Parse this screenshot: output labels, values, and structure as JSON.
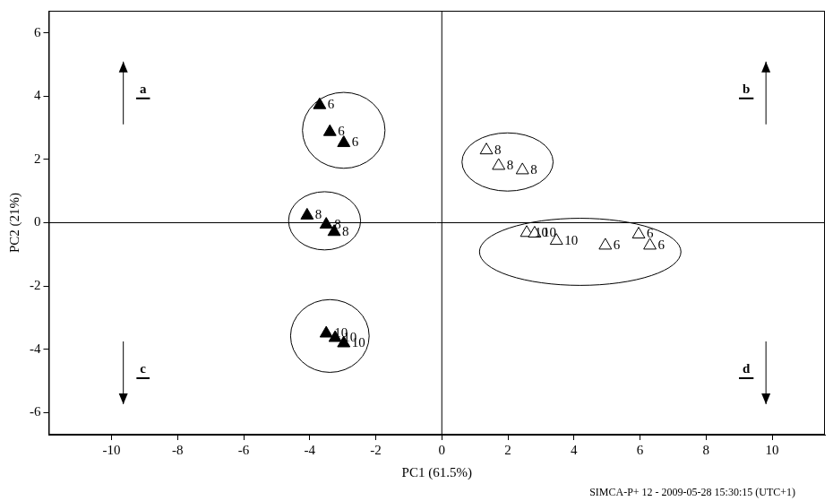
{
  "chart_data": {
    "type": "scatter",
    "x_label": "PC1 (61.5%)",
    "y_label": "PC2 (21%)",
    "footer": "SIMCA-P+ 12 - 2009-05-28 15:30:15 (UTC+1)",
    "xlim": [
      -11.9,
      11.6
    ],
    "xticks": [
      -10,
      -8,
      -6,
      -4,
      -2,
      0,
      2,
      4,
      6,
      8,
      10
    ],
    "ylim": [
      -6.7,
      6.7
    ],
    "yticks": [
      -6,
      -4,
      -2,
      0,
      2,
      4,
      6
    ],
    "grid": false,
    "annotations": [
      "a",
      "b",
      "c",
      "d"
    ],
    "series": [
      {
        "color": "#000000",
        "marker": "triangle-filled",
        "x": [
          -3.7,
          -3.39,
          -2.97,
          -4.08,
          -3.5,
          -3.26,
          -3.5,
          -3.23,
          -2.97
        ],
        "values": [
          3.72,
          2.87,
          2.52,
          0.23,
          -0.06,
          -0.29,
          -3.5,
          -3.64,
          -3.81
        ],
        "point_labels": [
          6,
          6,
          6,
          8,
          8,
          8,
          10,
          10,
          10
        ]
      },
      {
        "color": "#000000",
        "marker": "triangle-open",
        "x": [
          1.35,
          1.72,
          2.44,
          2.57,
          2.81,
          3.47,
          4.95,
          5.96,
          6.3
        ],
        "values": [
          2.29,
          1.8,
          1.66,
          -0.32,
          -0.34,
          -0.57,
          -0.72,
          -0.37,
          -0.72
        ],
        "point_labels": [
          8,
          8,
          8,
          10,
          10,
          10,
          6,
          6,
          6
        ]
      }
    ],
    "ellipses": [
      {
        "cx": -2.97,
        "cy": 2.92,
        "rx": 1.25,
        "ry": 1.2
      },
      {
        "cx": -3.55,
        "cy": 0.06,
        "rx": 1.09,
        "ry": 0.92
      },
      {
        "cx": -3.39,
        "cy": -3.58,
        "rx": 1.19,
        "ry": 1.15
      },
      {
        "cx": 1.99,
        "cy": 1.92,
        "rx": 1.38,
        "ry": 0.92
      },
      {
        "cx": 4.19,
        "cy": -0.92,
        "rx": 3.05,
        "ry": 1.06
      }
    ]
  }
}
